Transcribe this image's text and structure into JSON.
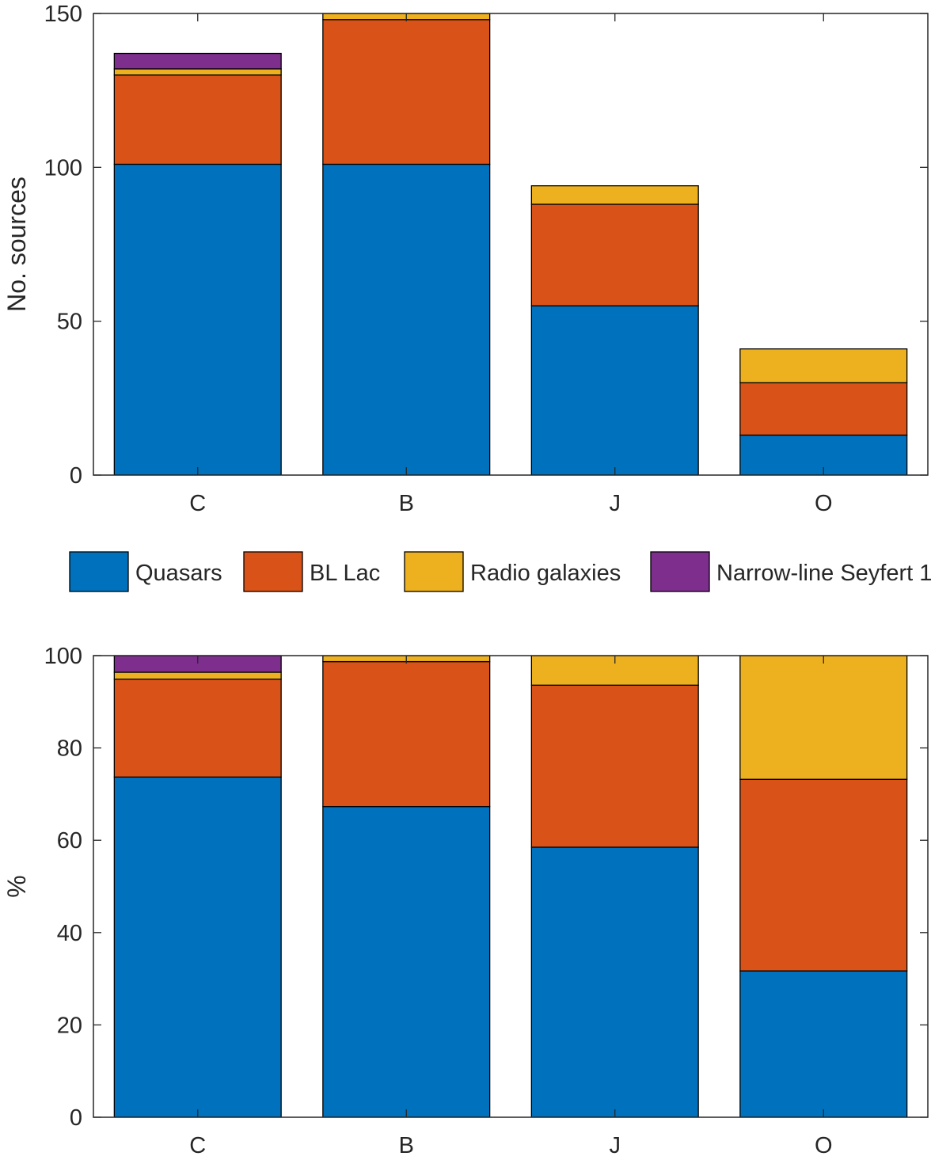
{
  "figure": {
    "colors": {
      "Quasars": "#0072BD",
      "BL Lac": "#D95319",
      "Radio galaxies": "#EDB120",
      "Narrow-line Seyfert 1": "#7E2F8E",
      "axis": "#262626"
    }
  },
  "legend": {
    "items": [
      {
        "label": "Quasars",
        "color": "#0072BD"
      },
      {
        "label": "BL Lac",
        "color": "#D95319"
      },
      {
        "label": "Radio galaxies",
        "color": "#EDB120"
      },
      {
        "label": "Narrow-line Seyfert 1",
        "color": "#7E2F8E"
      }
    ]
  },
  "chart_data": [
    {
      "type": "bar",
      "stacked": true,
      "title": "",
      "xlabel": "",
      "ylabel": "No. sources",
      "ylim": [
        0,
        150
      ],
      "yticks": [
        0,
        50,
        100,
        150
      ],
      "categories": [
        "C",
        "B",
        "J",
        "O"
      ],
      "series": [
        {
          "name": "Quasars",
          "values": [
            101,
            101,
            55,
            13
          ]
        },
        {
          "name": "BL Lac",
          "values": [
            29,
            47,
            33,
            17
          ]
        },
        {
          "name": "Radio galaxies",
          "values": [
            2,
            2,
            6,
            11
          ]
        },
        {
          "name": "Narrow-line Seyfert 1",
          "values": [
            5,
            0,
            0,
            0
          ]
        }
      ]
    },
    {
      "type": "bar",
      "stacked": true,
      "title": "",
      "xlabel": "",
      "ylabel": "%",
      "ylim": [
        0,
        100
      ],
      "yticks": [
        0,
        20,
        40,
        60,
        80,
        100
      ],
      "categories": [
        "C",
        "B",
        "J",
        "O"
      ],
      "series": [
        {
          "name": "Quasars",
          "values": [
            73.7,
            67.3,
            58.5,
            31.7
          ]
        },
        {
          "name": "BL Lac",
          "values": [
            21.2,
            31.4,
            35.1,
            41.5
          ]
        },
        {
          "name": "Radio galaxies",
          "values": [
            1.5,
            1.3,
            6.4,
            26.8
          ]
        },
        {
          "name": "Narrow-line Seyfert 1",
          "values": [
            3.6,
            0,
            0,
            0
          ]
        }
      ]
    }
  ]
}
